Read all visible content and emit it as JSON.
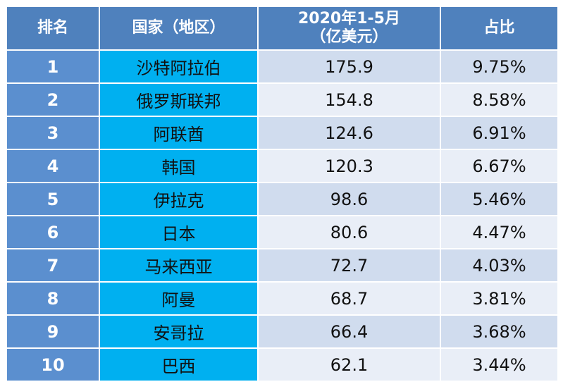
{
  "table": {
    "headers": {
      "rank": "排名",
      "country": "国家（地区）",
      "value_line1": "2020年1-5月",
      "value_line2": "（亿美元）",
      "share": "占比"
    },
    "rows": [
      {
        "rank": "1",
        "country": "沙特阿拉伯",
        "value": "175.9",
        "share": "9.75%"
      },
      {
        "rank": "2",
        "country": "俄罗斯联邦",
        "value": "154.8",
        "share": "8.58%"
      },
      {
        "rank": "3",
        "country": "阿联酋",
        "value": "124.6",
        "share": "6.91%"
      },
      {
        "rank": "4",
        "country": "韩国",
        "value": "120.3",
        "share": "6.67%"
      },
      {
        "rank": "5",
        "country": "伊拉克",
        "value": "98.6",
        "share": "5.46%"
      },
      {
        "rank": "6",
        "country": "日本",
        "value": "80.6",
        "share": "4.47%"
      },
      {
        "rank": "7",
        "country": "马来西亚",
        "value": "72.7",
        "share": "4.03%"
      },
      {
        "rank": "8",
        "country": "阿曼",
        "value": "68.7",
        "share": "3.81%"
      },
      {
        "rank": "9",
        "country": "安哥拉",
        "value": "66.4",
        "share": "3.68%"
      },
      {
        "rank": "10",
        "country": "巴西",
        "value": "62.1",
        "share": "3.44%"
      }
    ],
    "colors": {
      "header_bg": "#4f81bd",
      "rank_bg": "#5b8fcf",
      "country_bg": "#00b0f0",
      "row_odd_bg": "#d0dcee",
      "row_even_bg": "#e9eef7"
    }
  }
}
